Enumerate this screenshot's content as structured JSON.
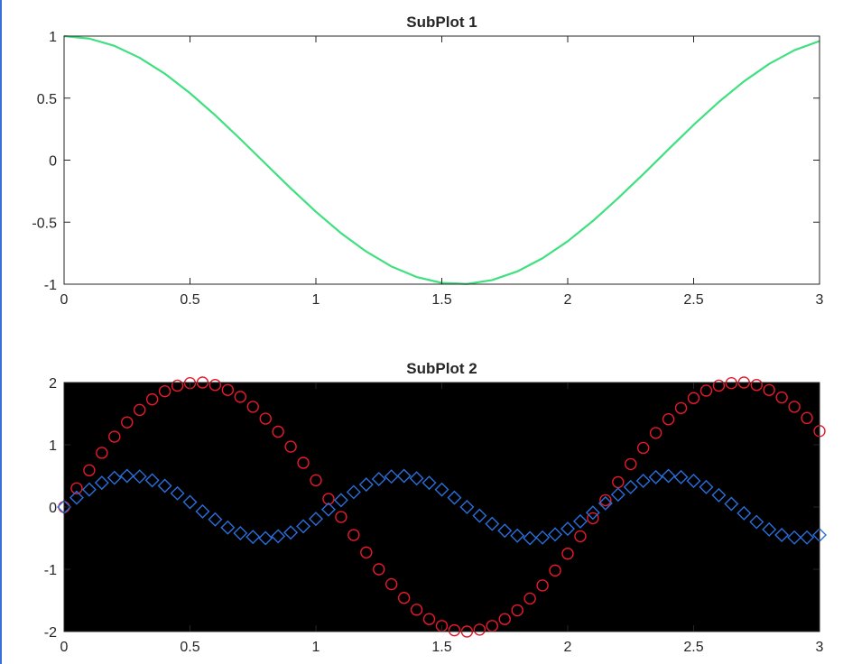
{
  "colors": {
    "edge": "#3a6fd8",
    "axes_frame": "#262626",
    "plot2_background": "#000000"
  },
  "chart_data": [
    {
      "type": "line",
      "title": "SubPlot 1",
      "xlim": [
        0,
        3
      ],
      "ylim": [
        -1,
        1
      ],
      "xticks": [
        0,
        0.5,
        1,
        1.5,
        2,
        2.5,
        3
      ],
      "xtick_labels": [
        "0",
        "0.5",
        "1",
        "1.5",
        "2",
        "2.5",
        "3"
      ],
      "yticks": [
        -1,
        -0.5,
        0,
        0.5,
        1
      ],
      "ytick_labels": [
        "-1",
        "-0.5",
        "0",
        "0.5",
        "1"
      ],
      "background": "#ffffff",
      "grid": false,
      "series": [
        {
          "color": "#3fe07f",
          "marker": "none",
          "x": [
            0,
            0.1,
            0.2,
            0.3,
            0.4,
            0.5,
            0.6,
            0.7,
            0.8,
            0.9,
            1.0,
            1.1,
            1.2,
            1.3,
            1.4,
            1.5,
            1.6,
            1.7,
            1.8,
            1.9,
            2.0,
            2.1,
            2.2,
            2.3,
            2.4,
            2.5,
            2.6,
            2.7,
            2.8,
            2.9,
            3.0
          ],
          "values": [
            1.0,
            0.98,
            0.921,
            0.825,
            0.697,
            0.54,
            0.362,
            0.17,
            -0.029,
            -0.227,
            -0.416,
            -0.589,
            -0.737,
            -0.857,
            -0.942,
            -0.99,
            -0.998,
            -0.967,
            -0.897,
            -0.791,
            -0.654,
            -0.49,
            -0.307,
            -0.113,
            0.087,
            0.284,
            0.469,
            0.635,
            0.776,
            0.886,
            0.96
          ]
        }
      ]
    },
    {
      "type": "scatter",
      "title": "SubPlot 2",
      "xlim": [
        0,
        3
      ],
      "ylim": [
        -2,
        2
      ],
      "xticks": [
        0,
        0.5,
        1,
        1.5,
        2,
        2.5,
        3
      ],
      "xtick_labels": [
        "0",
        "0.5",
        "1",
        "1.5",
        "2",
        "2.5",
        "3"
      ],
      "yticks": [
        -2,
        -1,
        0,
        1,
        2
      ],
      "ytick_labels": [
        "-2",
        "-1",
        "0",
        "1",
        "2"
      ],
      "background": "#000000",
      "grid": false,
      "series": [
        {
          "color": "#e8192c",
          "marker": "circle",
          "x": [
            0,
            0.05,
            0.1,
            0.15,
            0.2,
            0.25,
            0.3,
            0.35,
            0.4,
            0.45,
            0.5,
            0.55,
            0.6,
            0.65,
            0.7,
            0.75,
            0.8,
            0.85,
            0.9,
            0.95,
            1.0,
            1.05,
            1.1,
            1.15,
            1.2,
            1.25,
            1.3,
            1.35,
            1.4,
            1.45,
            1.5,
            1.55,
            1.6,
            1.65,
            1.7,
            1.75,
            1.8,
            1.85,
            1.9,
            1.95,
            2.0,
            2.05,
            2.1,
            2.15,
            2.2,
            2.25,
            2.3,
            2.35,
            2.4,
            2.45,
            2.5,
            2.55,
            2.6,
            2.65,
            2.7,
            2.75,
            2.8,
            2.85,
            2.9,
            2.95,
            3.0
          ],
          "values": [
            0.0,
            0.3,
            0.59,
            0.87,
            1.13,
            1.36,
            1.56,
            1.73,
            1.86,
            1.95,
            1.99,
            2.0,
            1.96,
            1.88,
            1.77,
            1.61,
            1.42,
            1.21,
            0.97,
            0.71,
            0.43,
            0.13,
            -0.16,
            -0.45,
            -0.73,
            -1.0,
            -1.24,
            -1.46,
            -1.65,
            -1.8,
            -1.91,
            -1.98,
            -2.0,
            -1.97,
            -1.91,
            -1.8,
            -1.66,
            -1.47,
            -1.26,
            -1.02,
            -0.75,
            -0.47,
            -0.18,
            0.11,
            0.4,
            0.69,
            0.95,
            1.19,
            1.41,
            1.59,
            1.75,
            1.87,
            1.95,
            1.99,
            2.0,
            1.96,
            1.88,
            1.76,
            1.61,
            1.43,
            1.22
          ]
        },
        {
          "color": "#2a6fdb",
          "marker": "diamond",
          "x": [
            0,
            0.05,
            0.1,
            0.15,
            0.2,
            0.25,
            0.3,
            0.35,
            0.4,
            0.45,
            0.5,
            0.55,
            0.6,
            0.65,
            0.7,
            0.75,
            0.8,
            0.85,
            0.9,
            0.95,
            1.0,
            1.05,
            1.1,
            1.15,
            1.2,
            1.25,
            1.3,
            1.35,
            1.4,
            1.45,
            1.5,
            1.55,
            1.6,
            1.65,
            1.7,
            1.75,
            1.8,
            1.85,
            1.9,
            1.95,
            2.0,
            2.05,
            2.1,
            2.15,
            2.2,
            2.25,
            2.3,
            2.35,
            2.4,
            2.45,
            2.5,
            2.55,
            2.6,
            2.65,
            2.7,
            2.75,
            2.8,
            2.85,
            2.9,
            2.95,
            3.0
          ],
          "values": [
            0.0,
            0.15,
            0.28,
            0.39,
            0.47,
            0.5,
            0.49,
            0.43,
            0.34,
            0.22,
            0.08,
            -0.07,
            -0.2,
            -0.33,
            -0.42,
            -0.48,
            -0.5,
            -0.47,
            -0.41,
            -0.31,
            -0.19,
            -0.04,
            0.11,
            0.24,
            0.36,
            0.45,
            0.49,
            0.5,
            0.46,
            0.39,
            0.28,
            0.15,
            0.0,
            -0.14,
            -0.27,
            -0.38,
            -0.46,
            -0.5,
            -0.49,
            -0.44,
            -0.35,
            -0.23,
            -0.09,
            0.06,
            0.2,
            0.32,
            0.42,
            0.48,
            0.5,
            0.48,
            0.42,
            0.32,
            0.19,
            0.05,
            -0.1,
            -0.24,
            -0.36,
            -0.45,
            -0.49,
            -0.49,
            -0.45
          ]
        }
      ]
    }
  ]
}
